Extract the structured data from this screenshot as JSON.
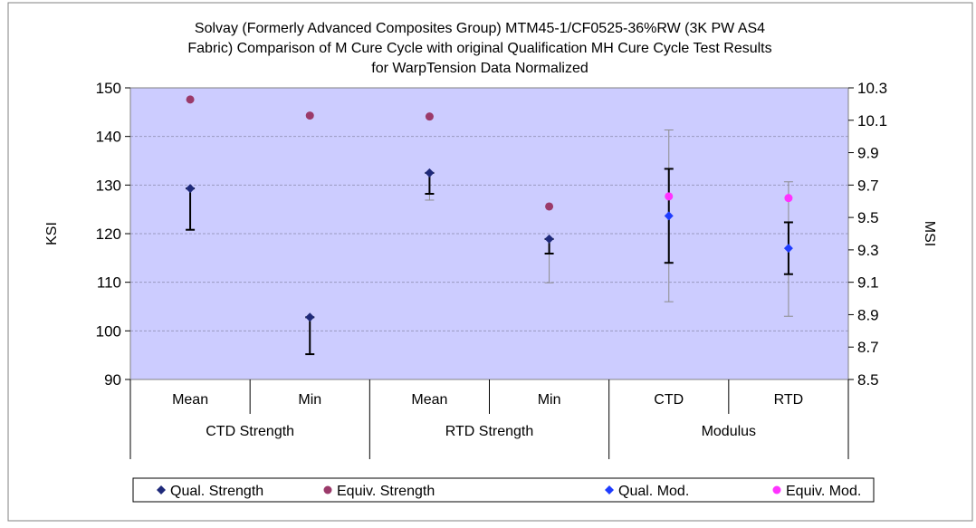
{
  "chart_data": {
    "type": "scatter",
    "title_lines": [
      "Solvay (Formerly Advanced Composites Group) MTM45-1/CF0525-36%RW (3K PW AS4",
      "Fabric) Comparison of M Cure Cycle with original Qualification MH Cure Cycle Test Results",
      "for WarpTension Data Normalized"
    ],
    "ylabel_left": "KSI",
    "ylabel_right": "MSI",
    "ylim_left": [
      90,
      150
    ],
    "yticks_left": [
      "90",
      "100",
      "110",
      "120",
      "130",
      "140",
      "150"
    ],
    "ylim_right": [
      8.5,
      10.3
    ],
    "yticks_right": [
      "8.5",
      "8.7",
      "8.9",
      "9.1",
      "9.3",
      "9.5",
      "9.7",
      "9.9",
      "10.1",
      "10.3"
    ],
    "categories": [
      "Mean",
      "Min",
      "Mean",
      "Min",
      "CTD",
      "RTD"
    ],
    "groups": [
      {
        "label": "CTD Strength",
        "span": [
          0,
          1
        ]
      },
      {
        "label": "RTD Strength",
        "span": [
          2,
          3
        ]
      },
      {
        "label": "Modulus",
        "span": [
          4,
          5
        ]
      }
    ],
    "series": [
      {
        "name": "Qual. Strength",
        "color": "#1f2a7a",
        "marker": "diamond",
        "axis": "left",
        "values": [
          129.3,
          102.8,
          132.5,
          118.9,
          null,
          null
        ]
      },
      {
        "name": "Equiv. Strength",
        "color": "#9b3a6a",
        "marker": "circle",
        "axis": "left",
        "values": [
          147.6,
          144.3,
          144.1,
          125.6,
          null,
          null
        ]
      },
      {
        "name": "Qual. Mod.",
        "color": "#1f3cff",
        "marker": "diamond",
        "axis": "right",
        "values": [
          null,
          null,
          null,
          null,
          9.51,
          9.31
        ]
      },
      {
        "name": "Equiv. Mod.",
        "color": "#ff33ff",
        "marker": "circle",
        "axis": "right",
        "values": [
          null,
          null,
          null,
          null,
          9.63,
          9.62
        ]
      }
    ],
    "error_bars": [
      {
        "category": 0,
        "axis": "left",
        "high": 129.3,
        "low": 120.8,
        "style": "dark"
      },
      {
        "category": 1,
        "axis": "left",
        "high": 102.8,
        "low": 95.2,
        "style": "dark"
      },
      {
        "category": 2,
        "axis": "left",
        "high": 132.5,
        "low": 128.2,
        "style": "dark"
      },
      {
        "category": 2,
        "axis": "left",
        "high": 132.5,
        "low": 126.9,
        "style": "light"
      },
      {
        "category": 3,
        "axis": "left",
        "high": 118.9,
        "low": 115.9,
        "style": "dark"
      },
      {
        "category": 3,
        "axis": "left",
        "high": 118.9,
        "low": 109.9,
        "style": "light"
      },
      {
        "category": 4,
        "axis": "right",
        "high": 9.8,
        "low": 9.22,
        "style": "dark"
      },
      {
        "category": 4,
        "axis": "right",
        "high": 10.04,
        "low": 8.98,
        "style": "light"
      },
      {
        "category": 5,
        "axis": "right",
        "high": 9.47,
        "low": 9.15,
        "style": "dark"
      },
      {
        "category": 5,
        "axis": "right",
        "high": 9.72,
        "low": 8.89,
        "style": "light"
      }
    ],
    "grid": true,
    "legend_position": "bottom"
  },
  "colors": {
    "plot_bg": "#ccccff",
    "grid": "#9a9ac0",
    "error_dark": "#000000",
    "error_light": "#8c8c8c"
  }
}
